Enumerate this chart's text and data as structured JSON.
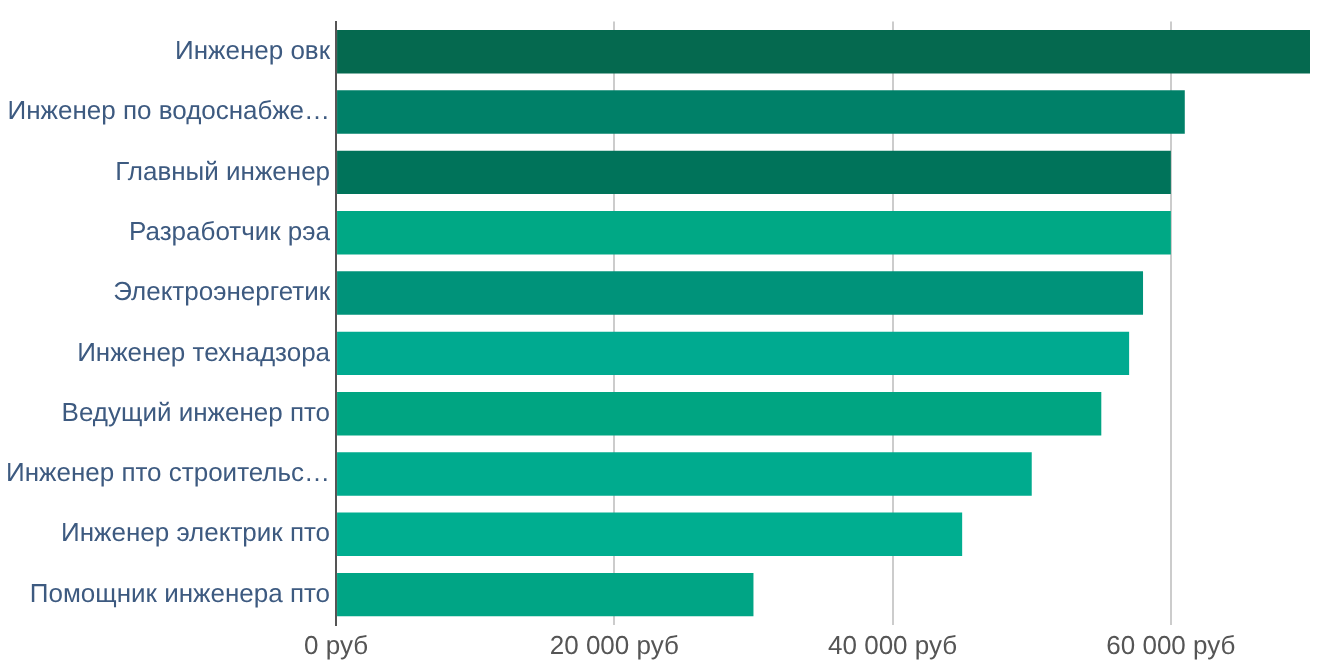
{
  "chart_data": {
    "type": "bar",
    "orientation": "horizontal",
    "categories": [
      "Инженер овк",
      "Инженер по водоснабже…",
      "Главный инженер",
      "Разработчик рэа",
      "Электроэнергетик",
      "Инженер технадзора",
      "Ведущий инженер пто",
      "Инженер пто строительс…",
      "Инженер электрик пто",
      "Помощник инженера пто"
    ],
    "values": [
      70000,
      61000,
      60000,
      60000,
      58000,
      57000,
      55000,
      50000,
      45000,
      30000
    ],
    "colors": [
      "#05694f",
      "#008068",
      "#00735a",
      "#00a885",
      "#00937a",
      "#00aa90",
      "#00a582",
      "#00ab8e",
      "#00ae90",
      "#00a585"
    ],
    "xlim": [
      0,
      70000
    ],
    "xticks": [
      {
        "value": 0,
        "label": "0 руб"
      },
      {
        "value": 20000,
        "label": "20 000 руб"
      },
      {
        "value": 40000,
        "label": "40 000 руб"
      },
      {
        "value": 60000,
        "label": "60 000 руб"
      }
    ],
    "grid": "x",
    "legend": false
  }
}
